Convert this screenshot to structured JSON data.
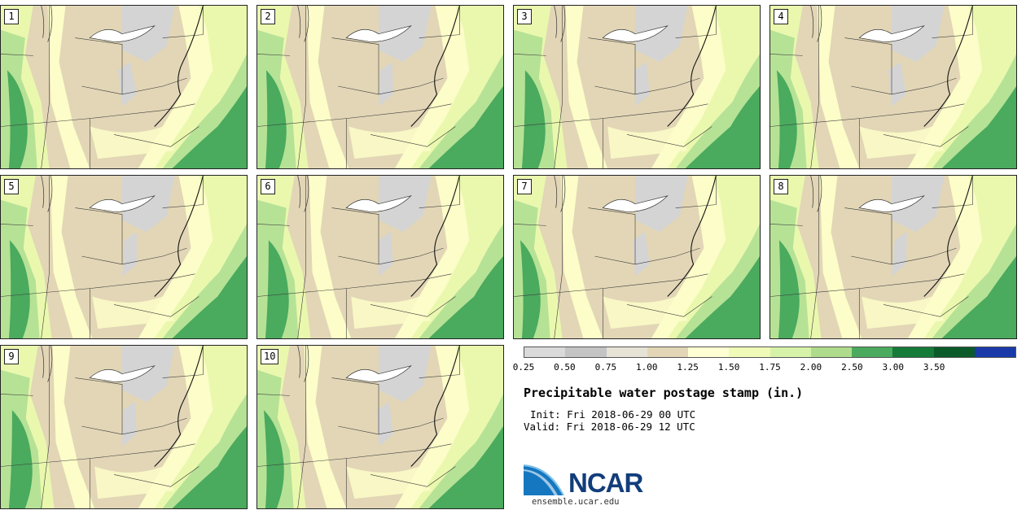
{
  "panels": [
    "1",
    "2",
    "3",
    "4",
    "5",
    "6",
    "7",
    "8",
    "9",
    "10"
  ],
  "legend": {
    "ticks": [
      "0.25",
      "0.50",
      "0.75",
      "1.00",
      "1.25",
      "1.50",
      "1.75",
      "2.00",
      "2.50",
      "3.00",
      "3.50"
    ],
    "colors": [
      "#dadada",
      "#c4c4c4",
      "#e6e2d6",
      "#e2d6b6",
      "#feffd2",
      "#f0fbb8",
      "#d6f2a8",
      "#aedc8c",
      "#4aaa5e",
      "#167a38",
      "#0a5a2a",
      "#1a3aaa"
    ]
  },
  "title": "Precipitable water postage stamp (in.)",
  "init": "Init: Fri 2018-06-29 00 UTC",
  "valid": "Valid: Fri 2018-06-29 12 UTC",
  "logo": {
    "name": "NCAR",
    "site": "ensemble.ucar.edu"
  },
  "map_colors": {
    "tan": "#e2d6b6",
    "grey": "#d4d4d4",
    "pale": "#fcfdc8",
    "yellowgreen": "#eaf8ae",
    "light_green": "#b6e296",
    "green": "#4aaa5e",
    "dark_green": "#2e8c48"
  }
}
